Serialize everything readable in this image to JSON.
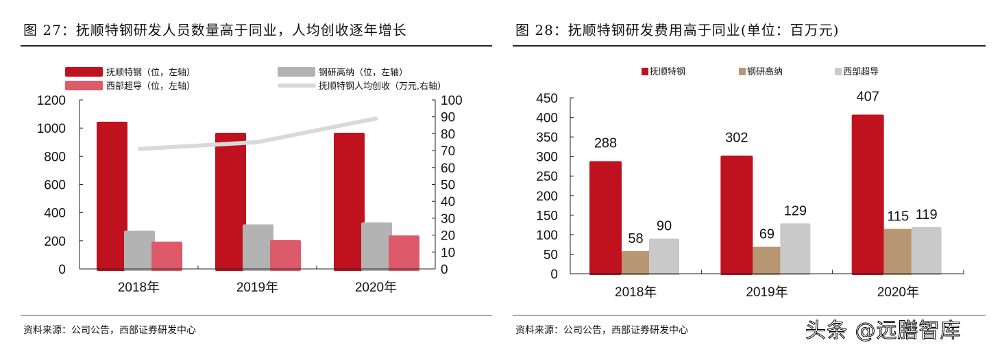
{
  "left": {
    "title": "图 27：抚顺特钢研发人员数量高于同业，人均创收逐年增长",
    "source": "资料来源：公司公告，西部证券研发中心"
  },
  "right": {
    "title": "图 28：抚顺特钢研发费用高于同业(单位：百万元)",
    "source": "资料来源：公司公告，西部证券研发中心"
  },
  "watermark": "头条 @远膳智库",
  "chart_data": [
    {
      "type": "bar",
      "categories": [
        "2018年",
        "2019年",
        "2020年"
      ],
      "series": [
        {
          "name": "抚顺特钢（位，左轴）",
          "type": "bar",
          "axis": "left",
          "color": "#C0111F",
          "values": [
            1045,
            967,
            967
          ]
        },
        {
          "name": "钢研高纳（位，左轴）",
          "type": "bar",
          "axis": "left",
          "color": "#B3B3B3",
          "values": [
            272,
            316,
            330
          ]
        },
        {
          "name": "西部超导（位，左轴）",
          "type": "bar",
          "axis": "left",
          "color": "#DD5A6A",
          "values": [
            194,
            204,
            238
          ]
        },
        {
          "name": "抚顺特钢人均创收（万元,右轴）",
          "type": "line",
          "axis": "right",
          "color": "#D9D9D9",
          "values": [
            71,
            75,
            89
          ]
        }
      ],
      "ylim_left": [
        0,
        1200
      ],
      "yticks_left": [
        "0",
        "200",
        "400",
        "600",
        "800",
        "1000",
        "1200"
      ],
      "ylim_right": [
        0,
        100
      ],
      "yticks_right": [
        "0",
        "10",
        "20",
        "30",
        "40",
        "50",
        "60",
        "70",
        "80",
        "90",
        "100"
      ],
      "legend": "top",
      "grid": false
    },
    {
      "type": "bar",
      "categories": [
        "2018年",
        "2019年",
        "2020年"
      ],
      "series": [
        {
          "name": "抚顺特钢",
          "color": "#C0111F",
          "values": [
            288,
            302,
            407
          ]
        },
        {
          "name": "钢研高纳",
          "color": "#B89673",
          "values": [
            58,
            69,
            115
          ]
        },
        {
          "name": "西部超导",
          "color": "#C9C9C9",
          "values": [
            90,
            129,
            119
          ]
        }
      ],
      "ylim": [
        0,
        450
      ],
      "yticks": [
        "0",
        "50",
        "100",
        "150",
        "200",
        "250",
        "300",
        "350",
        "400",
        "450"
      ],
      "data_labels": true,
      "legend": "top",
      "grid": false
    }
  ]
}
